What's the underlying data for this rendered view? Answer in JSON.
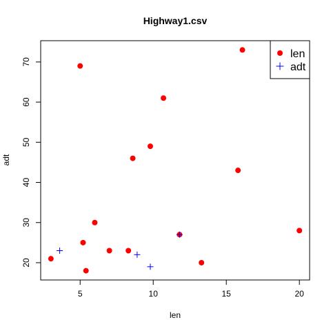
{
  "chart_data": {
    "type": "scatter",
    "title": "Highway1.csv",
    "xlabel": "len",
    "ylabel": "adt",
    "xlim": [
      2.3,
      20.7
    ],
    "ylim": [
      15.7,
      75.3
    ],
    "x_ticks": [
      5,
      10,
      15,
      20
    ],
    "y_ticks": [
      20,
      30,
      40,
      50,
      60,
      70
    ],
    "legend_position": "top-right",
    "series": [
      {
        "name": "len",
        "marker": "filled-circle",
        "color": "#ff0000",
        "points": [
          {
            "x": 3.0,
            "y": 21
          },
          {
            "x": 5.0,
            "y": 69
          },
          {
            "x": 5.2,
            "y": 25
          },
          {
            "x": 5.4,
            "y": 18
          },
          {
            "x": 6.0,
            "y": 30
          },
          {
            "x": 7.0,
            "y": 23
          },
          {
            "x": 8.3,
            "y": 23
          },
          {
            "x": 8.6,
            "y": 46
          },
          {
            "x": 9.8,
            "y": 49
          },
          {
            "x": 10.7,
            "y": 61
          },
          {
            "x": 11.8,
            "y": 27
          },
          {
            "x": 13.3,
            "y": 20
          },
          {
            "x": 15.8,
            "y": 43
          },
          {
            "x": 16.1,
            "y": 73
          },
          {
            "x": 20.0,
            "y": 28
          }
        ]
      },
      {
        "name": "adt",
        "marker": "plus",
        "color": "#0000ff",
        "points": [
          {
            "x": 3.6,
            "y": 23
          },
          {
            "x": 8.9,
            "y": 22
          },
          {
            "x": 9.8,
            "y": 19
          },
          {
            "x": 11.8,
            "y": 27
          }
        ]
      }
    ]
  }
}
